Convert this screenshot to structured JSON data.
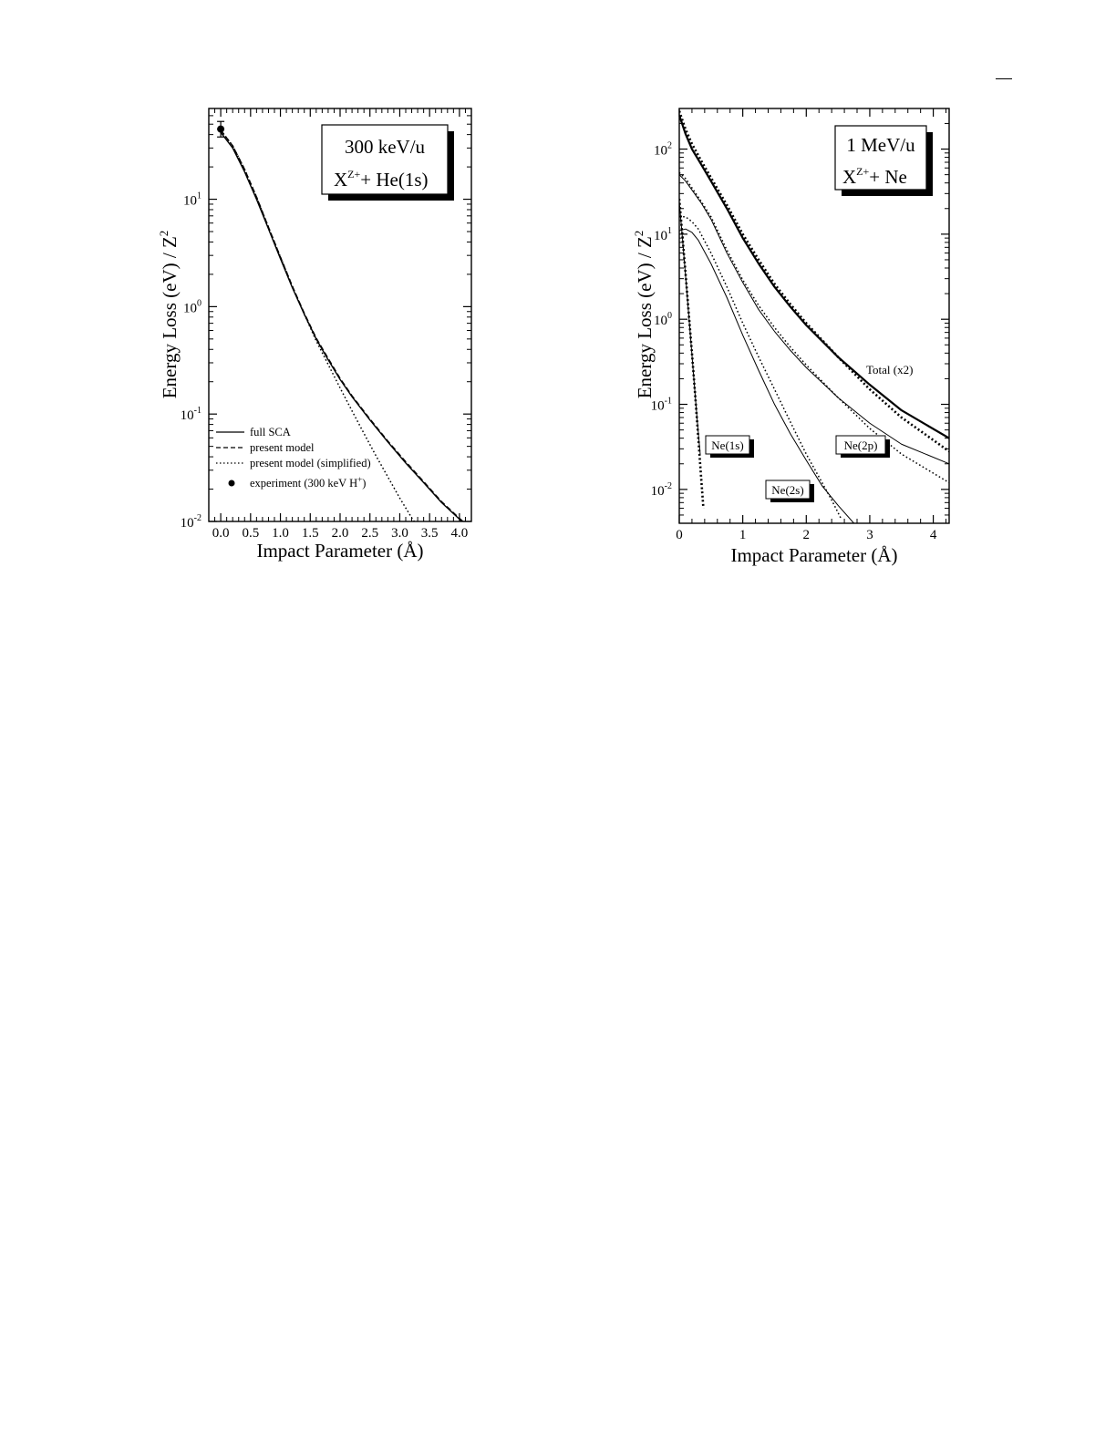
{
  "chart_data": [
    {
      "type": "line",
      "panel": "left",
      "title_line1": "300 keV/u",
      "title_line2_base": "X",
      "title_line2_sup": "Z+",
      "title_line2_rest": "+  He(1s)",
      "xlabel": "Impact Parameter (Å)",
      "ylabel_text": "Energy Loss (eV) / Z",
      "ylabel_sup": "2",
      "xlim": [
        -0.2,
        4.2
      ],
      "ylim": [
        0.01,
        70
      ],
      "yscale": "log",
      "xticks": [
        0.0,
        0.5,
        1.0,
        1.5,
        2.0,
        2.5,
        3.0,
        3.5,
        4.0
      ],
      "xtick_labels": [
        "0.0",
        "0.5",
        "1.0",
        "1.5",
        "2.0",
        "2.5",
        "3.0",
        "3.5",
        "4.0"
      ],
      "yticks": [
        {
          "value": 0.01,
          "exp": "-2"
        },
        {
          "value": 0.1,
          "exp": "-1"
        },
        {
          "value": 1,
          "exp": "0"
        },
        {
          "value": 10,
          "exp": "1"
        }
      ],
      "legend": [
        {
          "label": "full SCA",
          "style": "solid"
        },
        {
          "label": "present model",
          "style": "dashed"
        },
        {
          "label": "present model (simplified)",
          "style": "dotted"
        },
        {
          "label_base": "experiment (300 keV H",
          "label_sup": "+",
          "label_end": ")",
          "style": "marker"
        }
      ],
      "series": [
        {
          "style": "solid",
          "x": [
            0,
            0.2,
            0.4,
            0.6,
            0.8,
            1.0,
            1.2,
            1.4,
            1.6,
            1.8,
            2.0,
            2.2,
            2.5,
            2.8,
            3.1,
            3.4,
            3.7,
            4.0,
            4.15
          ],
          "y": [
            42,
            30,
            18,
            10,
            5.3,
            2.8,
            1.5,
            0.85,
            0.5,
            0.32,
            0.21,
            0.145,
            0.088,
            0.055,
            0.035,
            0.023,
            0.015,
            0.0105,
            0.0088
          ]
        },
        {
          "style": "dashed",
          "x": [
            0,
            0.2,
            0.4,
            0.6,
            0.8,
            1.0,
            1.2,
            1.4,
            1.6,
            1.8,
            2.0,
            2.2,
            2.5,
            2.8,
            3.1,
            3.4,
            3.7,
            4.0,
            4.15
          ],
          "y": [
            44,
            31.5,
            19,
            10.5,
            5.5,
            2.9,
            1.55,
            0.87,
            0.51,
            0.33,
            0.215,
            0.148,
            0.09,
            0.056,
            0.036,
            0.0235,
            0.0153,
            0.0107,
            0.009
          ]
        },
        {
          "style": "dotted",
          "x": [
            0,
            0.2,
            0.4,
            0.6,
            0.8,
            1.0,
            1.2,
            1.4,
            1.6,
            1.8,
            2.0,
            2.2,
            2.4,
            2.6,
            2.8,
            3.0,
            3.2,
            3.4
          ],
          "y": [
            44,
            31.5,
            19,
            10.5,
            5.5,
            2.9,
            1.55,
            0.85,
            0.48,
            0.29,
            0.175,
            0.107,
            0.066,
            0.041,
            0.026,
            0.0165,
            0.0108,
            0.0075
          ]
        }
      ],
      "experiment": {
        "x": 0.0,
        "y": 45,
        "yerr_low": 38,
        "yerr_high": 53
      }
    },
    {
      "type": "line",
      "panel": "right",
      "title_line1": "1 MeV/u",
      "title_line2_base": "X",
      "title_line2_sup": "Z+",
      "title_line2_rest": "+  Ne",
      "xlabel": "Impact Parameter (Å)",
      "ylabel_text": "Energy Loss (eV) / Z",
      "ylabel_sup": "2",
      "xlim": [
        0,
        4.25
      ],
      "ylim": [
        0.004,
        300
      ],
      "yscale": "log",
      "xticks": [
        0,
        1,
        2,
        3,
        4
      ],
      "xtick_labels": [
        "0",
        "1",
        "2",
        "3",
        "4"
      ],
      "yticks": [
        {
          "value": 0.01,
          "exp": "-2"
        },
        {
          "value": 0.1,
          "exp": "-1"
        },
        {
          "value": 1,
          "exp": "0"
        },
        {
          "value": 10,
          "exp": "1"
        },
        {
          "value": 100,
          "exp": "2"
        }
      ],
      "annotations": [
        {
          "text": "Total (x2)",
          "boxed": false
        },
        {
          "text": "Ne(1s)",
          "boxed": true
        },
        {
          "text": "Ne(2s)",
          "boxed": true
        },
        {
          "text": "Ne(2p)",
          "boxed": true
        }
      ],
      "series": [
        {
          "group": "Total (x2)",
          "style": "solid-thick",
          "x": [
            0,
            0.1,
            0.2,
            0.35,
            0.5,
            0.75,
            1.0,
            1.25,
            1.5,
            1.75,
            2.0,
            2.5,
            3.0,
            3.5,
            4.25
          ],
          "y": [
            250,
            150,
            100,
            65,
            42,
            20,
            9.0,
            4.5,
            2.4,
            1.4,
            0.85,
            0.36,
            0.17,
            0.085,
            0.04
          ]
        },
        {
          "group": "Total (x2)",
          "style": "dotted-thick",
          "x": [
            0,
            0.1,
            0.2,
            0.35,
            0.5,
            0.75,
            1.0,
            1.25,
            1.5,
            1.75,
            2.0,
            2.5,
            3.0,
            3.5,
            4.25
          ],
          "y": [
            280,
            170,
            115,
            72,
            46,
            22,
            10,
            5.0,
            2.6,
            1.5,
            0.9,
            0.36,
            0.15,
            0.07,
            0.028
          ]
        },
        {
          "group": "Ne(2p)",
          "style": "solid-thin",
          "x": [
            0,
            0.1,
            0.2,
            0.35,
            0.5,
            0.75,
            1.0,
            1.25,
            1.5,
            1.75,
            2.0,
            2.5,
            3.0,
            3.5,
            4.25
          ],
          "y": [
            50,
            42,
            33,
            23,
            15,
            6.0,
            2.7,
            1.3,
            0.72,
            0.43,
            0.27,
            0.12,
            0.06,
            0.034,
            0.02
          ]
        },
        {
          "group": "Ne(2p)",
          "style": "dotted",
          "x": [
            0,
            0.1,
            0.2,
            0.35,
            0.5,
            0.75,
            1.0,
            1.25,
            1.5,
            1.75,
            2.0,
            2.5,
            3.0,
            3.5,
            4.25
          ],
          "y": [
            53,
            45,
            35,
            24,
            16,
            6.5,
            2.9,
            1.45,
            0.8,
            0.47,
            0.29,
            0.12,
            0.052,
            0.026,
            0.012
          ]
        },
        {
          "group": "Ne(2s)",
          "style": "solid-thin",
          "x": [
            0,
            0.1,
            0.2,
            0.3,
            0.5,
            0.75,
            1.0,
            1.25,
            1.5,
            1.75,
            2.0,
            2.25,
            2.5,
            2.75
          ],
          "y": [
            11,
            11.5,
            10.5,
            8.5,
            4.5,
            1.8,
            0.65,
            0.25,
            0.1,
            0.045,
            0.022,
            0.011,
            0.0065,
            0.004
          ]
        },
        {
          "group": "Ne(2s)",
          "style": "dotted",
          "x": [
            0,
            0.1,
            0.2,
            0.3,
            0.5,
            0.75,
            1.0,
            1.25,
            1.5,
            1.75,
            2.0,
            2.2,
            2.4,
            2.55
          ],
          "y": [
            16,
            16,
            14,
            11.5,
            6.0,
            2.4,
            0.9,
            0.36,
            0.15,
            0.062,
            0.026,
            0.014,
            0.0075,
            0.0045
          ]
        },
        {
          "group": "Ne(1s)",
          "style": "solid-thin",
          "x": [
            0,
            0.05,
            0.1,
            0.15,
            0.2,
            0.25,
            0.3,
            0.33
          ],
          "y": [
            24,
            9,
            3.2,
            1.1,
            0.38,
            0.13,
            0.046,
            0.026
          ]
        },
        {
          "group": "Ne(1s)",
          "style": "dotted-thick",
          "x": [
            0,
            0.05,
            0.1,
            0.15,
            0.2,
            0.25,
            0.3,
            0.35,
            0.38
          ],
          "y": [
            26,
            9.5,
            3.4,
            1.15,
            0.4,
            0.13,
            0.04,
            0.012,
            0.006
          ]
        }
      ]
    }
  ]
}
